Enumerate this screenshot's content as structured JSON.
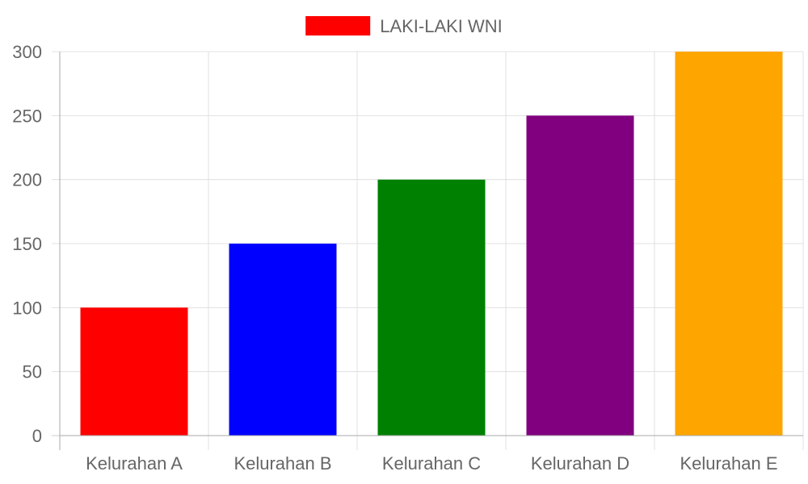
{
  "chart_data": {
    "type": "bar",
    "categories": [
      "Kelurahan A",
      "Kelurahan B",
      "Kelurahan C",
      "Kelurahan D",
      "Kelurahan E"
    ],
    "series": [
      {
        "name": "LAKI-LAKI WNI",
        "values": [
          100,
          150,
          200,
          250,
          300
        ],
        "colors": [
          "#ff0000",
          "#0000ff",
          "#008000",
          "#800080",
          "#ffa500"
        ]
      }
    ],
    "ylim": [
      0,
      300
    ],
    "yticks": [
      0,
      50,
      100,
      150,
      200,
      250,
      300
    ],
    "grid": true,
    "legend": {
      "position": "top",
      "color": "#ff0000"
    }
  }
}
